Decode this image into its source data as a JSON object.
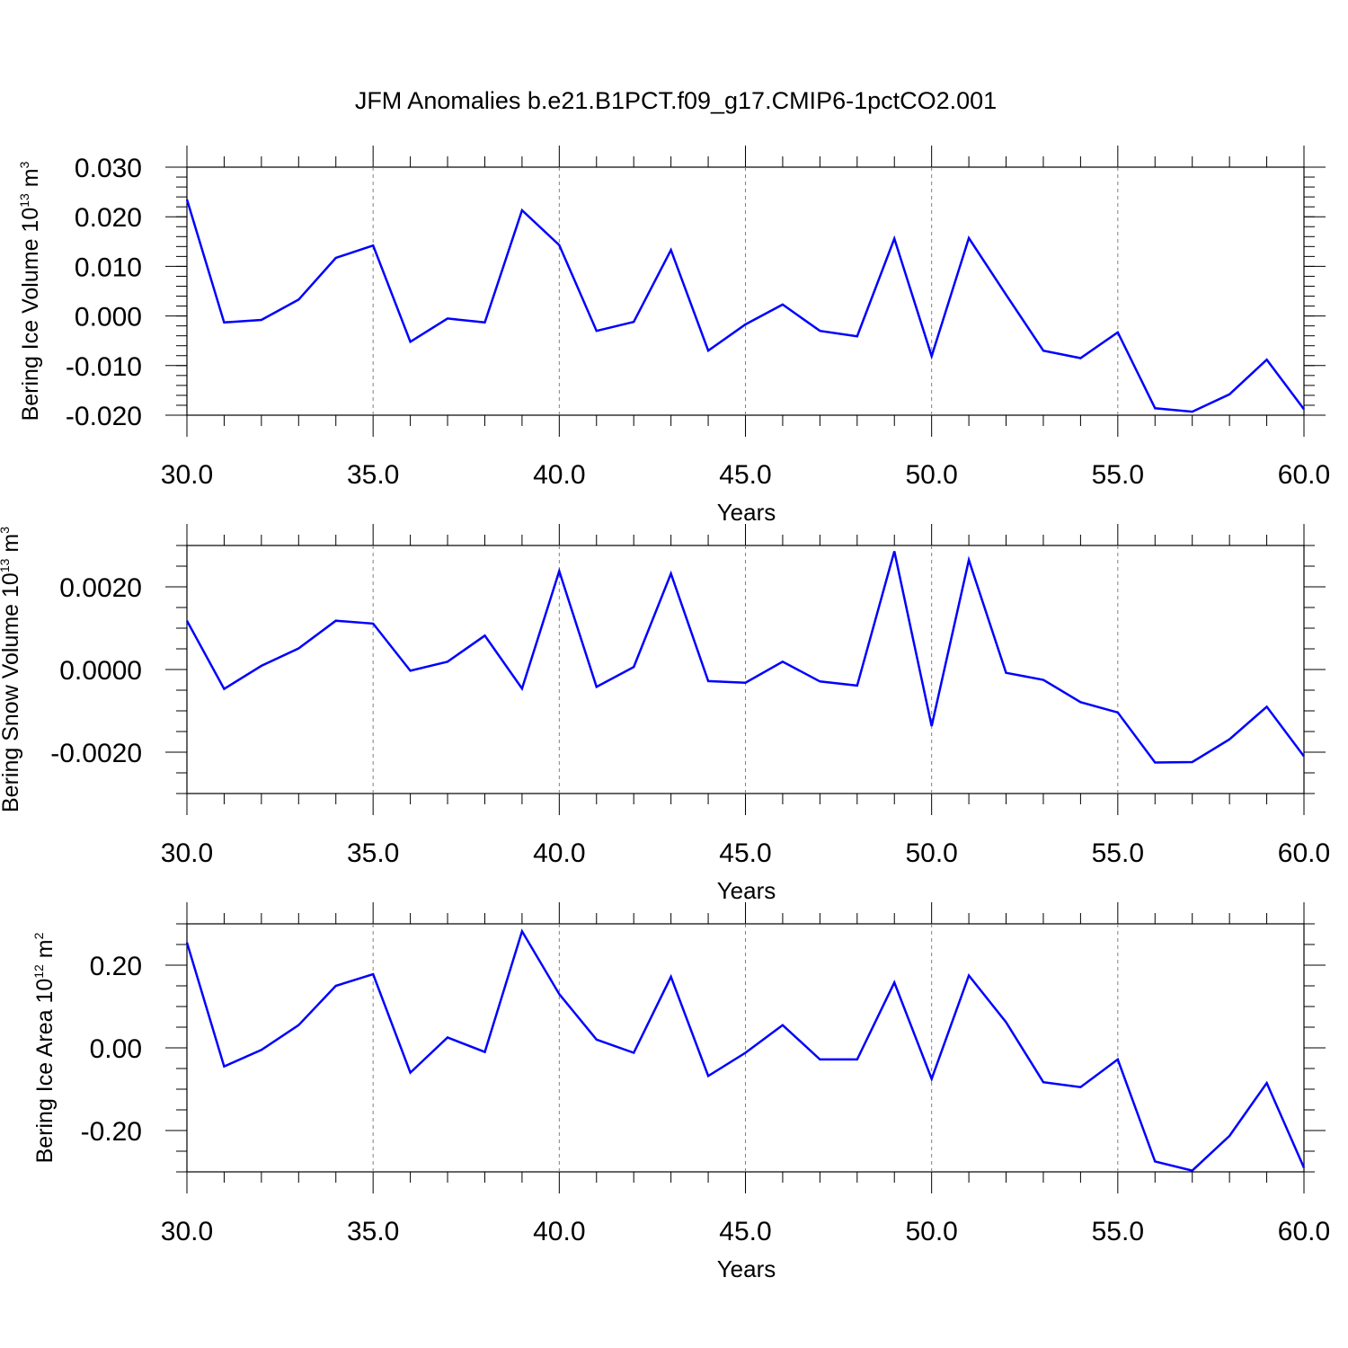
{
  "title": "JFM Anomalies b.e21.B1PCT.f09_g17.CMIP6-1pctCO2.001",
  "colors": {
    "series": "#0000ff",
    "axis": "#000000",
    "grid": "#808080"
  },
  "chart_data": [
    {
      "type": "line",
      "ylabel": {
        "text": "Bering Ice Volume 10",
        "sup": "13",
        "unit": " m",
        "unit_sup": "3"
      },
      "xlabel": "Years",
      "xlim": [
        30,
        60
      ],
      "ylim": [
        -0.02,
        0.03
      ],
      "yticks": [
        -0.02,
        -0.01,
        0.0,
        0.01,
        0.02,
        0.03
      ],
      "ytick_labels": [
        "-0.020",
        "-0.010",
        "0.000",
        "0.010",
        "0.020",
        "0.030"
      ],
      "yminor_step": 0.002,
      "xticks": [
        30,
        35,
        40,
        45,
        50,
        55,
        60
      ],
      "xtick_labels": [
        "30.0",
        "35.0",
        "40.0",
        "45.0",
        "50.0",
        "55.0",
        "60.0"
      ],
      "x": [
        30,
        31,
        32,
        33,
        34,
        35,
        36,
        37,
        38,
        39,
        40,
        41,
        42,
        43,
        44,
        45,
        46,
        47,
        48,
        49,
        50,
        51,
        52,
        53,
        54,
        55,
        56,
        57,
        58,
        59,
        60
      ],
      "values": [
        0.0235,
        -0.0013,
        -0.0008,
        0.0033,
        0.0117,
        0.0142,
        -0.0052,
        -0.0005,
        -0.0013,
        0.0213,
        0.0143,
        -0.003,
        -0.0012,
        0.0133,
        -0.007,
        -0.0017,
        0.0023,
        -0.003,
        -0.0041,
        0.0156,
        -0.0081,
        0.0157,
        0.0043,
        -0.007,
        -0.0085,
        -0.0033,
        -0.0186,
        -0.0193,
        -0.0158,
        -0.0088,
        -0.0188
      ]
    },
    {
      "type": "line",
      "ylabel": {
        "text": "Bering Snow Volume 10",
        "sup": "13",
        "unit": " m",
        "unit_sup": "3"
      },
      "xlabel": "Years",
      "xlim": [
        30,
        60
      ],
      "ylim": [
        -0.003,
        0.003
      ],
      "yticks": [
        -0.002,
        0.0,
        0.002
      ],
      "ytick_labels": [
        "-0.0020",
        "0.0000",
        "0.0020"
      ],
      "yminor_step": 0.0005,
      "xticks": [
        30,
        35,
        40,
        45,
        50,
        55,
        60
      ],
      "xtick_labels": [
        "30.0",
        "35.0",
        "40.0",
        "45.0",
        "50.0",
        "55.0",
        "60.0"
      ],
      "x": [
        30,
        31,
        32,
        33,
        34,
        35,
        36,
        37,
        38,
        39,
        40,
        41,
        42,
        43,
        44,
        45,
        46,
        47,
        48,
        49,
        50,
        51,
        52,
        53,
        54,
        55,
        56,
        57,
        58,
        59,
        60
      ],
      "values": [
        0.00118,
        -0.00047,
        9e-05,
        0.00051,
        0.00118,
        0.00111,
        -3e-05,
        0.00019,
        0.00082,
        -0.00046,
        0.00238,
        -0.00042,
        6e-05,
        0.00232,
        -0.00028,
        -0.00032,
        0.00019,
        -0.00029,
        -0.00039,
        0.00286,
        -0.00137,
        0.00265,
        -8e-05,
        -0.00025,
        -0.00079,
        -0.00104,
        -0.00225,
        -0.00224,
        -0.00169,
        -0.0009,
        -0.0021
      ]
    },
    {
      "type": "line",
      "ylabel": {
        "text": "Bering Ice Area 10",
        "sup": "12",
        "unit": " m",
        "unit_sup": "2"
      },
      "xlabel": "Years",
      "xlim": [
        30,
        60
      ],
      "ylim": [
        -0.3,
        0.3
      ],
      "yticks": [
        -0.2,
        0.0,
        0.2
      ],
      "ytick_labels": [
        "-0.20",
        "0.00",
        "0.20"
      ],
      "yminor_step": 0.05,
      "xticks": [
        30,
        35,
        40,
        45,
        50,
        55,
        60
      ],
      "xtick_labels": [
        "30.0",
        "35.0",
        "40.0",
        "45.0",
        "50.0",
        "55.0",
        "60.0"
      ],
      "x": [
        30,
        31,
        32,
        33,
        34,
        35,
        36,
        37,
        38,
        39,
        40,
        41,
        42,
        43,
        44,
        45,
        46,
        47,
        48,
        49,
        50,
        51,
        52,
        53,
        54,
        55,
        56,
        57,
        58,
        59,
        60
      ],
      "values": [
        0.255,
        -0.045,
        -0.005,
        0.055,
        0.15,
        0.178,
        -0.06,
        0.025,
        -0.01,
        0.282,
        0.13,
        0.02,
        -0.012,
        0.172,
        -0.068,
        -0.012,
        0.055,
        -0.028,
        -0.028,
        0.158,
        -0.075,
        0.175,
        0.062,
        -0.083,
        -0.095,
        -0.028,
        -0.275,
        -0.297,
        -0.213,
        -0.085,
        -0.29
      ]
    }
  ]
}
